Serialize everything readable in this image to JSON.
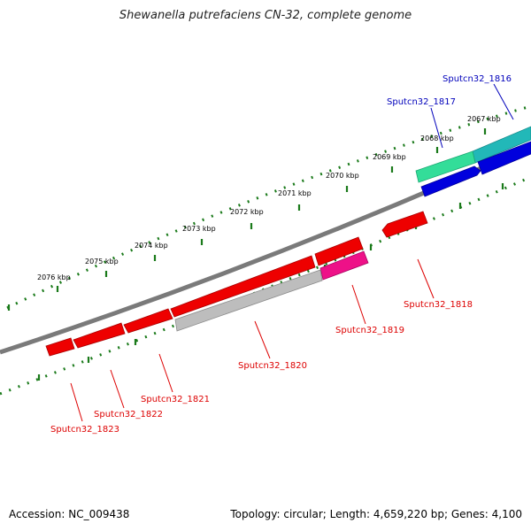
{
  "title": "Shewanella putrefaciens CN-32, complete genome",
  "footer": {
    "accession": "Accession: NC_009438",
    "summary": "Topology: circular; Length: 4,659,220 bp; Genes: 4,100"
  },
  "colors": {
    "backbone": "#7a7a7a",
    "tick_dots": "#1a7a1a",
    "gene_red": "#ee0000",
    "gene_blue": "#0000dd",
    "gene_magenta": "#ee1188",
    "gene_gray": "#bdbdbd",
    "gene_teal": "#22b8b8",
    "gene_green": "#33dd99",
    "label_red": "#dd0000",
    "label_blue": "#0000bb"
  },
  "position_labels": [
    "2067 kbp",
    "2068 kbp",
    "2069 kbp",
    "2070 kbp",
    "2071 kbp",
    "2072 kbp",
    "2073 kbp",
    "2074 kbp",
    "2075 kbp",
    "2076 kbp"
  ],
  "genes": [
    {
      "id": "Sputcn32_1816",
      "color": "gene_teal"
    },
    {
      "id": "Sputcn32_1817",
      "color": "gene_blue"
    },
    {
      "id": "Sputcn32_1818",
      "color": "gene_red"
    },
    {
      "id": "Sputcn32_1819",
      "color": "gene_magenta"
    },
    {
      "id": "Sputcn32_1820",
      "color": "gene_gray"
    },
    {
      "id": "Sputcn32_1821",
      "color": "gene_red"
    },
    {
      "id": "Sputcn32_1822",
      "color": "gene_red"
    },
    {
      "id": "Sputcn32_1823",
      "color": "gene_red"
    }
  ]
}
